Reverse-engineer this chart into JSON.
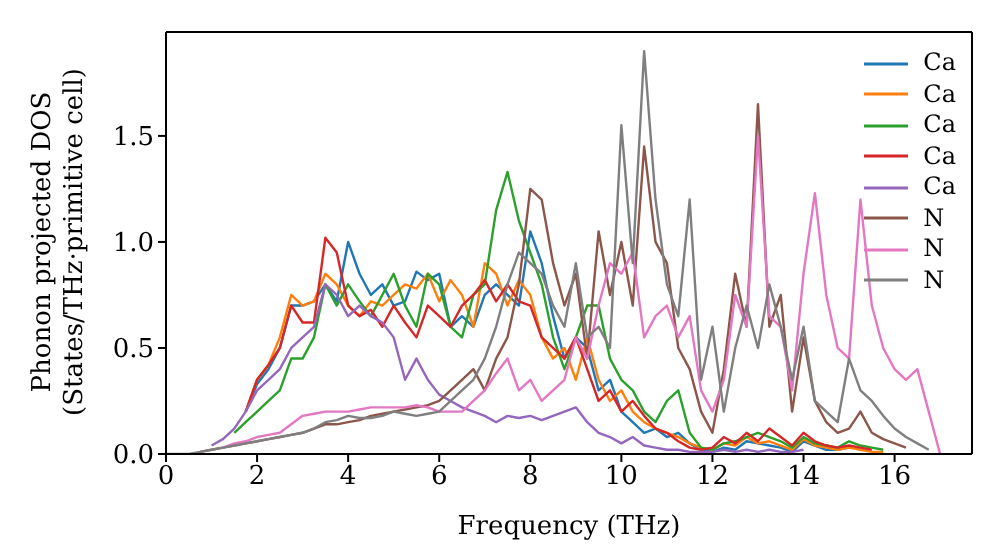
{
  "chart_data": {
    "type": "line",
    "xlabel": "Frequency (THz)",
    "ylabel": "Phonon projected DOS\n(States/THz·primitive cell)",
    "x": [
      0,
      0.25,
      0.5,
      0.75,
      1,
      1.25,
      1.5,
      1.75,
      2,
      2.25,
      2.5,
      2.75,
      3,
      3.25,
      3.5,
      3.75,
      4,
      4.25,
      4.5,
      4.75,
      5,
      5.25,
      5.5,
      5.75,
      6,
      6.25,
      6.5,
      6.75,
      7,
      7.25,
      7.5,
      7.75,
      8,
      8.25,
      8.5,
      8.75,
      9,
      9.25,
      9.5,
      9.75,
      10,
      10.25,
      10.5,
      10.75,
      11,
      11.25,
      11.5,
      11.75,
      12,
      12.25,
      12.5,
      12.75,
      13,
      13.25,
      13.5,
      13.75,
      14,
      14.25,
      14.5,
      14.75,
      15,
      15.25,
      15.5,
      15.75,
      16,
      16.25,
      16.5,
      16.75,
      17
    ],
    "xlim": [
      0,
      17.7
    ],
    "xticks": [
      0,
      2,
      4,
      6,
      8,
      10,
      12,
      14,
      16
    ],
    "ylim": [
      0,
      1.99
    ],
    "yticks": [
      {
        "value": 0,
        "label": "0.0"
      },
      0.5,
      {
        "value": 1,
        "label": "1.0"
      },
      1.5
    ],
    "grid": false,
    "legend": "top right",
    "marker": "none",
    "line_style": "solid",
    "series": [
      {
        "name": "Ca",
        "color": "#1f77b4",
        "values": [
          null,
          null,
          null,
          null,
          null,
          null,
          null,
          0.2,
          0.33,
          0.4,
          0.5,
          0.7,
          0.7,
          0.72,
          0.8,
          0.72,
          1.0,
          0.85,
          0.75,
          0.8,
          0.7,
          0.72,
          0.86,
          0.82,
          0.85,
          0.6,
          0.65,
          0.6,
          0.75,
          0.8,
          0.75,
          0.7,
          1.05,
          0.9,
          0.65,
          0.45,
          0.55,
          0.5,
          0.3,
          0.35,
          0.2,
          0.15,
          0.1,
          0.12,
          0.08,
          0.1,
          0.05,
          0.02,
          0.01,
          0.03,
          0.02,
          0.06,
          0.05,
          0.04,
          0.03,
          0.01,
          0.06,
          0.04,
          0.02,
          0.02,
          0.03,
          null,
          null,
          null,
          null,
          null,
          null,
          null,
          null
        ]
      },
      {
        "name": "Ca",
        "color": "#ff7f0e",
        "values": [
          null,
          null,
          null,
          null,
          null,
          null,
          null,
          0.2,
          0.35,
          0.42,
          0.55,
          0.75,
          0.7,
          0.72,
          0.85,
          0.8,
          0.7,
          0.65,
          0.72,
          0.7,
          0.75,
          0.8,
          0.78,
          0.85,
          0.72,
          0.82,
          0.75,
          0.6,
          0.9,
          0.85,
          0.7,
          0.82,
          0.75,
          0.55,
          0.45,
          0.5,
          0.35,
          0.55,
          0.35,
          0.25,
          0.3,
          0.2,
          0.15,
          0.12,
          0.1,
          0.08,
          0.05,
          0.03,
          0.02,
          0.05,
          0.04,
          0.08,
          0.05,
          0.06,
          0.04,
          0.02,
          0.07,
          0.04,
          0.03,
          0.02,
          0.03,
          0.02,
          0.01,
          0.01,
          null,
          null,
          null,
          null,
          null
        ]
      },
      {
        "name": "Ca",
        "color": "#2ca02c",
        "values": [
          null,
          null,
          null,
          null,
          null,
          null,
          0.1,
          0.15,
          0.2,
          0.25,
          0.3,
          0.45,
          0.45,
          0.55,
          0.8,
          0.7,
          0.8,
          0.72,
          0.65,
          0.75,
          0.85,
          0.7,
          0.6,
          0.85,
          0.8,
          0.6,
          0.55,
          0.75,
          0.8,
          1.15,
          1.33,
          1.1,
          0.95,
          0.8,
          0.55,
          0.4,
          0.55,
          0.7,
          0.7,
          0.45,
          0.35,
          0.3,
          0.2,
          0.15,
          0.25,
          0.3,
          0.1,
          0.03,
          0.02,
          0.05,
          0.06,
          0.08,
          0.1,
          0.08,
          0.06,
          0.03,
          0.08,
          0.05,
          0.04,
          0.03,
          0.06,
          0.04,
          0.03,
          0.02,
          null,
          null,
          null,
          null,
          null
        ]
      },
      {
        "name": "Ca",
        "color": "#d62728",
        "values": [
          null,
          null,
          null,
          null,
          null,
          null,
          null,
          0.2,
          0.35,
          0.42,
          0.5,
          0.7,
          0.62,
          0.62,
          1.02,
          0.95,
          0.7,
          0.65,
          0.68,
          0.6,
          0.7,
          0.62,
          0.55,
          0.7,
          0.65,
          0.6,
          0.7,
          0.75,
          0.82,
          0.72,
          0.8,
          0.72,
          0.7,
          0.55,
          0.5,
          0.45,
          0.55,
          0.4,
          0.25,
          0.3,
          0.2,
          0.25,
          0.18,
          0.12,
          0.1,
          0.06,
          0.03,
          0.02,
          0.03,
          0.08,
          0.05,
          0.1,
          0.06,
          0.12,
          0.08,
          0.04,
          0.1,
          0.06,
          0.04,
          0.03,
          0.04,
          0.03,
          0.02,
          null,
          null,
          null,
          null,
          null,
          null
        ]
      },
      {
        "name": "Ca",
        "color": "#9467bd",
        "values": [
          null,
          null,
          null,
          null,
          0.04,
          0.07,
          0.12,
          0.2,
          0.3,
          0.35,
          0.4,
          0.5,
          0.55,
          0.6,
          0.8,
          0.75,
          0.65,
          0.7,
          0.65,
          0.62,
          0.55,
          0.35,
          0.45,
          0.35,
          0.28,
          0.25,
          0.22,
          0.2,
          0.18,
          0.15,
          0.18,
          0.17,
          0.18,
          0.16,
          0.18,
          0.2,
          0.22,
          0.15,
          0.1,
          0.08,
          0.05,
          0.08,
          0.04,
          0.03,
          0.02,
          0.02,
          0.01,
          0.01,
          0.01,
          0.02,
          0.01,
          0.02,
          0.01,
          0.02,
          0.01,
          0.01,
          0.02,
          null,
          null,
          null,
          null,
          null,
          null,
          null,
          null,
          null,
          null,
          null,
          null
        ]
      },
      {
        "name": "N",
        "color": "#8c564b",
        "values": [
          null,
          null,
          null,
          0.01,
          0.02,
          0.03,
          0.04,
          0.05,
          0.06,
          0.07,
          0.08,
          0.09,
          0.1,
          0.12,
          0.14,
          0.14,
          0.15,
          0.16,
          0.18,
          0.19,
          0.2,
          0.21,
          0.22,
          0.23,
          0.25,
          0.3,
          0.35,
          0.4,
          0.3,
          0.45,
          0.55,
          0.8,
          1.25,
          1.2,
          0.9,
          0.7,
          0.85,
          0.45,
          1.05,
          0.75,
          1.0,
          0.7,
          1.45,
          1.0,
          0.9,
          0.5,
          0.4,
          0.2,
          0.1,
          0.4,
          0.85,
          0.6,
          1.65,
          0.6,
          0.75,
          0.2,
          0.55,
          0.25,
          0.15,
          0.1,
          0.12,
          0.2,
          0.1,
          0.07,
          0.05,
          0.03,
          null,
          null,
          null
        ]
      },
      {
        "name": "N",
        "color": "#e377c2",
        "values": [
          null,
          null,
          null,
          null,
          null,
          0.03,
          0.05,
          0.06,
          0.08,
          0.09,
          0.1,
          0.14,
          0.18,
          0.19,
          0.2,
          0.2,
          0.2,
          0.21,
          0.22,
          0.22,
          0.22,
          0.22,
          0.23,
          0.22,
          0.2,
          0.2,
          0.2,
          0.25,
          0.3,
          0.38,
          0.45,
          0.3,
          0.35,
          0.25,
          0.3,
          0.35,
          0.55,
          0.45,
          0.7,
          0.9,
          0.85,
          0.95,
          0.55,
          0.65,
          0.7,
          0.55,
          0.65,
          0.3,
          0.2,
          0.35,
          0.75,
          0.6,
          1.5,
          0.65,
          0.6,
          0.3,
          0.85,
          1.23,
          0.75,
          0.5,
          0.45,
          1.2,
          0.7,
          0.5,
          0.4,
          0.35,
          0.4,
          0.2,
          0
        ]
      },
      {
        "name": "N",
        "color": "#7f7f7f",
        "values": [
          0,
          0,
          0,
          0.01,
          0.02,
          0.03,
          0.04,
          0.05,
          0.06,
          0.07,
          0.08,
          0.09,
          0.1,
          0.12,
          0.15,
          0.16,
          0.18,
          0.17,
          0.17,
          0.18,
          0.2,
          0.19,
          0.18,
          0.19,
          0.2,
          0.25,
          0.3,
          0.35,
          0.45,
          0.6,
          0.8,
          0.95,
          0.9,
          0.85,
          0.7,
          0.6,
          0.9,
          0.55,
          0.6,
          0.5,
          1.55,
          0.9,
          1.9,
          1.2,
          0.8,
          0.65,
          1.2,
          0.35,
          0.6,
          0.2,
          0.5,
          0.7,
          0.5,
          0.8,
          0.6,
          0.35,
          0.6,
          0.25,
          0.2,
          0.15,
          0.45,
          0.3,
          0.25,
          0.18,
          0.12,
          0.08,
          0.05,
          0.02,
          null
        ]
      }
    ]
  }
}
